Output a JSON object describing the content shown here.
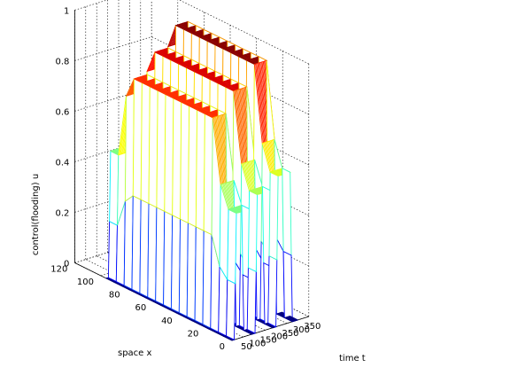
{
  "chart_data": {
    "type": "surface",
    "title": "",
    "xlabel": "time t",
    "ylabel": "space x",
    "zlabel": "control(flooding) u",
    "xlim": [
      0,
      350
    ],
    "ylim": [
      0,
      120
    ],
    "zlim": [
      0,
      1
    ],
    "x_ticks": [
      "50",
      "100",
      "150",
      "200",
      "250",
      "300",
      "350"
    ],
    "y_ticks": [
      "0",
      "20",
      "40",
      "60",
      "80",
      "100",
      "120"
    ],
    "z_ticks": [
      "0",
      "0.2",
      "0.4",
      "0.6",
      "0.8",
      "1"
    ],
    "colormap": "jet",
    "grid": true,
    "pulses": [
      {
        "t_on": 20,
        "t_off": 80,
        "x_min": 10,
        "x_max": 90,
        "level": 0.83
      },
      {
        "t_on": 115,
        "t_off": 175,
        "x_min": 10,
        "x_max": 90,
        "level": 0.91
      },
      {
        "t_on": 210,
        "t_off": 265,
        "x_min": 10,
        "x_max": 90,
        "level": 0.99
      }
    ],
    "baseline": 0.0
  },
  "colors": {
    "low": "#00008f",
    "high": "#800000",
    "background": "#ffffff",
    "grid": "#000000"
  }
}
